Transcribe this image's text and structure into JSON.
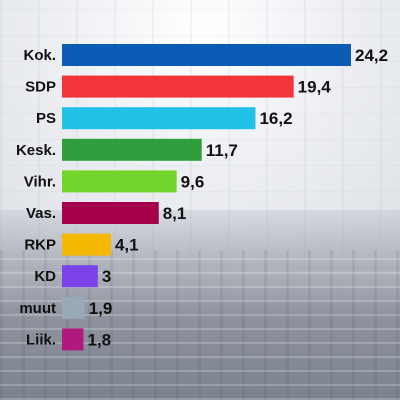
{
  "chart_data": {
    "type": "bar",
    "orientation": "horizontal",
    "categories": [
      "Kok.",
      "SDP",
      "PS",
      "Kesk.",
      "Vihr.",
      "Vas.",
      "RKP",
      "KD",
      "muut",
      "Liik."
    ],
    "values": [
      24.2,
      19.4,
      16.2,
      11.7,
      9.6,
      8.1,
      4.1,
      3,
      1.9,
      1.8
    ],
    "value_labels": [
      "24,2",
      "19,4",
      "16,2",
      "11,7",
      "9,6",
      "8,1",
      "4,1",
      "3",
      "1,9",
      "1,8"
    ],
    "colors": [
      "#0b5cb5",
      "#f2353a",
      "#22c1e8",
      "#2f9e3f",
      "#72d42c",
      "#a5004b",
      "#f5b700",
      "#7b42ea",
      "#9aa9b6",
      "#b0197e"
    ],
    "title": "",
    "xlabel": "",
    "ylabel": "",
    "xlim": [
      0,
      24.2
    ],
    "grid": false,
    "legend": "none"
  }
}
